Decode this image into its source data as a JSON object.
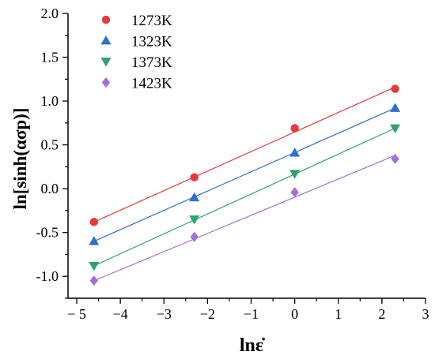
{
  "chart_data": {
    "type": "scatter",
    "xlabel": "lnε̇",
    "ylabel": "ln[sinh(ασp)]",
    "xlim": [
      -5.2,
      3
    ],
    "ylim": [
      -1.25,
      2.0
    ],
    "xticks": [
      -5,
      -4,
      -3,
      -2,
      -1,
      0,
      1,
      2,
      3
    ],
    "yticks": [
      -1.0,
      -0.5,
      0.0,
      0.5,
      1.0,
      1.5,
      2.0
    ],
    "xtick_labels": [
      "− 5",
      "−4",
      "−3",
      "−2",
      "−1",
      "0",
      "1",
      "2",
      "3"
    ],
    "ytick_labels": [
      "-1.0",
      "-0.5",
      "0.0",
      "0.5",
      "1.0",
      "1.5",
      "2.0"
    ],
    "legend_position": "top-left",
    "grid": false,
    "series": [
      {
        "name": "1273K",
        "marker": "circle",
        "color": "#e8383d",
        "x": [
          -4.605,
          -2.303,
          0,
          2.303
        ],
        "y": [
          -0.38,
          0.13,
          0.69,
          1.14
        ],
        "fit": [
          [
            -4.605,
            -0.38
          ],
          [
            2.303,
            1.16
          ]
        ]
      },
      {
        "name": "1323K",
        "marker": "triangle-up",
        "color": "#2f6fcf",
        "x": [
          -4.605,
          -2.303,
          0,
          2.303
        ],
        "y": [
          -0.6,
          -0.1,
          0.41,
          0.92
        ],
        "fit": [
          [
            -4.605,
            -0.6
          ],
          [
            2.303,
            0.92
          ]
        ]
      },
      {
        "name": "1373K",
        "marker": "triangle-down",
        "color": "#2ea36a",
        "x": [
          -4.605,
          -2.303,
          0,
          2.303
        ],
        "y": [
          -0.88,
          -0.35,
          0.17,
          0.69
        ],
        "fit": [
          [
            -4.605,
            -0.88
          ],
          [
            2.303,
            0.69
          ]
        ]
      },
      {
        "name": "1423K",
        "marker": "diamond",
        "color": "#a26fd8",
        "x": [
          -4.605,
          -2.303,
          0,
          2.303
        ],
        "y": [
          -1.05,
          -0.55,
          -0.04,
          0.34
        ],
        "fit": [
          [
            -4.605,
            -1.05
          ],
          [
            2.303,
            0.38
          ]
        ]
      }
    ]
  }
}
